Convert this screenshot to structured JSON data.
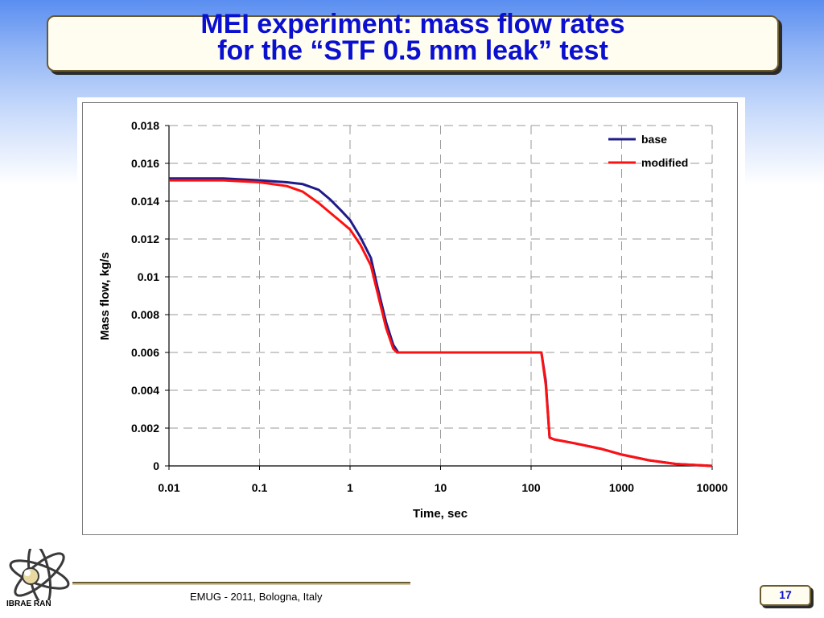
{
  "slide": {
    "title_line1": "MEI experiment: mass flow rates",
    "title_line2": "for the “STF 0.5 mm leak” test",
    "footer": "EMUG - 2011, Bologna, Italy",
    "page_number": "17",
    "logo_label": "IBRAE RAN",
    "title_color": "#0a0fd0"
  },
  "chart_data": {
    "type": "line",
    "title": "",
    "xlabel": "Time, sec",
    "ylabel": "Mass flow, kg/s",
    "xscale": "log",
    "xlim": [
      0.01,
      10000
    ],
    "ylim": [
      0,
      0.018
    ],
    "xticks": [
      "0.01",
      "0.1",
      "1",
      "10",
      "100",
      "1000",
      "10000"
    ],
    "yticks": [
      "0",
      "0.002",
      "0.004",
      "0.006",
      "0.008",
      "0.01",
      "0.012",
      "0.014",
      "0.016",
      "0.018"
    ],
    "grid": true,
    "legend_position": "top-right",
    "series": [
      {
        "name": "base",
        "color": "#1f1c8a",
        "x": [
          0.01,
          0.04,
          0.1,
          0.2,
          0.3,
          0.45,
          0.6,
          0.8,
          1.0,
          1.3,
          1.7,
          2.0,
          2.5,
          3.0,
          3.4,
          10,
          30,
          100,
          130,
          145,
          160,
          180,
          300,
          600,
          1000,
          2000,
          4000,
          10000
        ],
        "y": [
          0.0152,
          0.0152,
          0.0151,
          0.015,
          0.0149,
          0.0146,
          0.0141,
          0.0135,
          0.013,
          0.0121,
          0.011,
          0.0095,
          0.0076,
          0.0064,
          0.006,
          0.006,
          0.006,
          0.006,
          0.006,
          0.0045,
          0.0015,
          0.0014,
          0.0012,
          0.0009,
          0.0006,
          0.0003,
          0.0001,
          0.0
        ]
      },
      {
        "name": "modified",
        "color": "#ff1010",
        "x": [
          0.01,
          0.04,
          0.1,
          0.2,
          0.3,
          0.45,
          0.6,
          0.8,
          1.0,
          1.3,
          1.7,
          2.0,
          2.5,
          3.0,
          3.3,
          10,
          30,
          100,
          130,
          145,
          160,
          180,
          300,
          600,
          1000,
          2000,
          4000,
          10000
        ],
        "y": [
          0.0151,
          0.0151,
          0.015,
          0.0148,
          0.0145,
          0.0139,
          0.0134,
          0.0129,
          0.0125,
          0.0117,
          0.0106,
          0.0092,
          0.0073,
          0.0062,
          0.006,
          0.006,
          0.006,
          0.006,
          0.006,
          0.0043,
          0.0015,
          0.0014,
          0.0012,
          0.0009,
          0.0006,
          0.0003,
          0.0001,
          0.0
        ]
      }
    ]
  }
}
